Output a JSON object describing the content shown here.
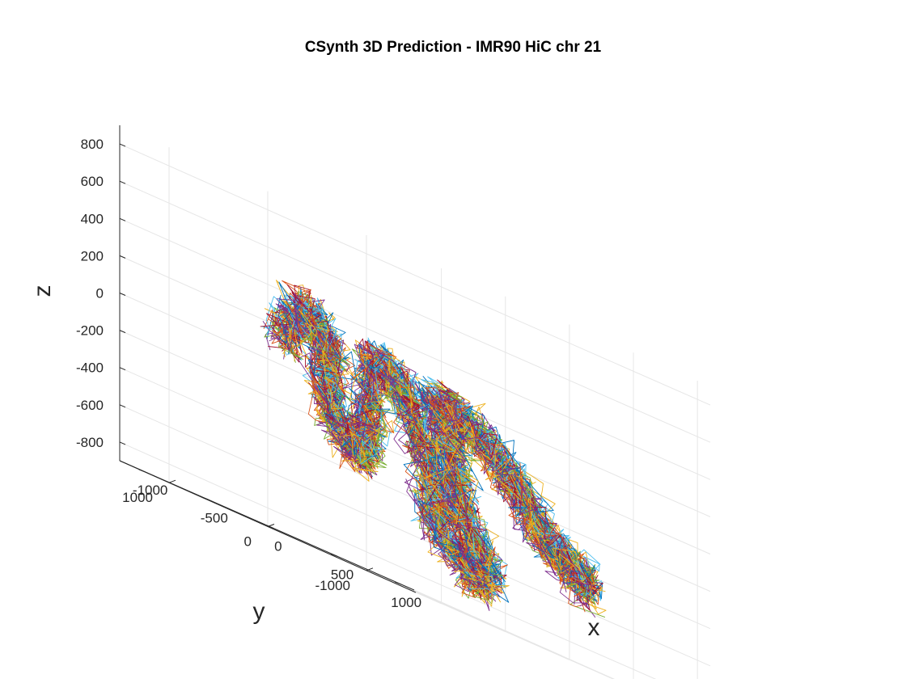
{
  "chart_data": {
    "type": "line",
    "title": "CSynth 3D Prediction - IMR90 HiC chr 21",
    "xlabel": "x",
    "ylabel": "y",
    "zlabel": "z",
    "xlim": [
      -1200,
      1100
    ],
    "ylim": [
      -1500,
      1500
    ],
    "zlim": [
      -900,
      900
    ],
    "x_ticks": [
      "-1000",
      "-500",
      "0",
      "500",
      "1000"
    ],
    "x_tick_values": [
      -1000,
      -500,
      0,
      500,
      1000
    ],
    "y_ticks": [
      "-1000",
      "0",
      "1000"
    ],
    "y_tick_values": [
      -1000,
      0,
      1000
    ],
    "z_ticks": [
      "-800",
      "-600",
      "-400",
      "-200",
      "0",
      "200",
      "400",
      "600",
      "800"
    ],
    "z_tick_values": [
      -800,
      -600,
      -400,
      -200,
      0,
      200,
      400,
      600,
      800
    ],
    "grid": true,
    "view": "3d-perspective",
    "series_colors": [
      "#0072BD",
      "#D95319",
      "#EDB120",
      "#7E2F8E",
      "#77AC30",
      "#4DBEEE",
      "#A2142F"
    ],
    "backbone_path": [
      {
        "x": -850,
        "y": 300,
        "z": 150
      },
      {
        "x": -700,
        "y": 250,
        "z": 350
      },
      {
        "x": -550,
        "y": 200,
        "z": 200
      },
      {
        "x": -650,
        "y": 100,
        "z": -100
      },
      {
        "x": -500,
        "y": 0,
        "z": -300
      },
      {
        "x": -350,
        "y": 100,
        "z": -150
      },
      {
        "x": -200,
        "y": 200,
        "z": 250
      },
      {
        "x": -50,
        "y": 100,
        "z": 150
      },
      {
        "x": 0,
        "y": -100,
        "z": -200
      },
      {
        "x": -100,
        "y": -300,
        "z": -500
      },
      {
        "x": 50,
        "y": -500,
        "z": -700
      },
      {
        "x": 200,
        "y": -400,
        "z": -600
      },
      {
        "x": 150,
        "y": -200,
        "z": -350
      },
      {
        "x": 250,
        "y": 0,
        "z": -100
      },
      {
        "x": 300,
        "y": 200,
        "z": 150
      },
      {
        "x": 500,
        "y": 300,
        "z": 150
      },
      {
        "x": 650,
        "y": 200,
        "z": 50
      },
      {
        "x": 750,
        "y": 0,
        "z": -100
      },
      {
        "x": 800,
        "y": -200,
        "z": -300
      },
      {
        "x": 950,
        "y": -300,
        "z": -400
      },
      {
        "x": 1000,
        "y": -400,
        "z": -500
      }
    ],
    "series_count": 60
  }
}
